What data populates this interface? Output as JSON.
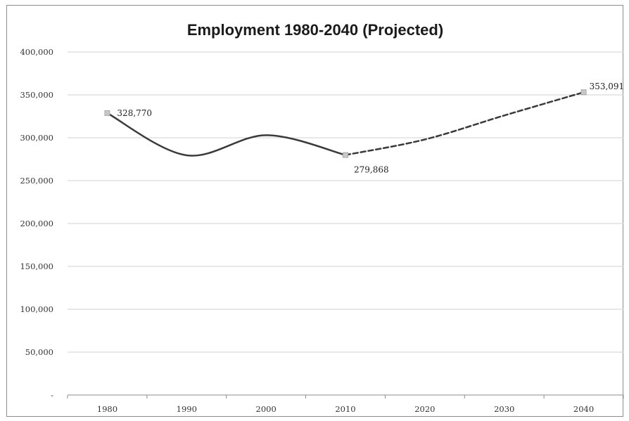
{
  "chart_data": {
    "type": "line",
    "title": "Employment 1980-2040 (Projected)",
    "xlabel": "",
    "ylabel": "",
    "categories": [
      "1980",
      "1990",
      "2000",
      "2010",
      "2020",
      "2030",
      "2040"
    ],
    "y_tick_labels": [
      "-",
      "50,000",
      "100,000",
      "150,000",
      "200,000",
      "250,000",
      "300,000",
      "350,000",
      "400,000"
    ],
    "ylim": [
      0,
      400000
    ],
    "grid": true,
    "legend": "none",
    "series": [
      {
        "style": "solid-smoothed",
        "x": [
          1980,
          1990,
          2000,
          2010
        ],
        "values": [
          328770,
          279500,
          303000,
          279868
        ]
      },
      {
        "style": "dashed",
        "x": [
          2010,
          2020,
          2030,
          2040
        ],
        "values": [
          279868,
          298000,
          326000,
          353091
        ]
      }
    ],
    "data_labels": [
      {
        "x": 1980,
        "value": 328770,
        "text": "328,770"
      },
      {
        "x": 2010,
        "value": 279868,
        "text": "279,868"
      },
      {
        "x": 2040,
        "value": 353091,
        "text": "353,091"
      }
    ],
    "colors": {
      "line": "#3a3a3a",
      "marker": "#c8c8c8",
      "grid": "#d0d0d0",
      "axis": "#8c8c8c"
    }
  }
}
